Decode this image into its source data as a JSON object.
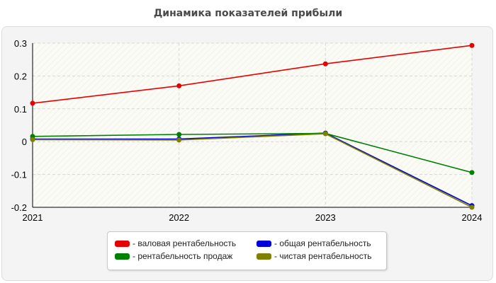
{
  "chart_data": {
    "type": "line",
    "title": "Динамика показателей прибыли",
    "x": [
      "2021",
      "2022",
      "2023",
      "2024"
    ],
    "ylim": [
      -0.2,
      0.3
    ],
    "yticks": [
      0.3,
      0.2,
      0.1,
      0,
      -0.1,
      -0.2
    ],
    "ytick_labels": [
      "0.3",
      "0.2",
      "0.1",
      "0",
      "-0.1",
      "-0.2"
    ],
    "grid": true,
    "legend_position": "bottom-center",
    "series": [
      {
        "name": "- валовая рентабельность",
        "color": "#e60000",
        "values": [
          0.117,
          0.17,
          0.237,
          0.293
        ]
      },
      {
        "name": "- общая рентабельность",
        "color": "#0000d8",
        "values": [
          0.008,
          0.008,
          0.026,
          -0.195
        ]
      },
      {
        "name": "- рентабельность продаж",
        "color": "#008000",
        "values": [
          0.016,
          0.022,
          0.025,
          -0.094
        ]
      },
      {
        "name": "- чистая рентабельность",
        "color": "#7f7f00",
        "values": [
          0.006,
          0.005,
          0.024,
          -0.2
        ]
      }
    ]
  }
}
